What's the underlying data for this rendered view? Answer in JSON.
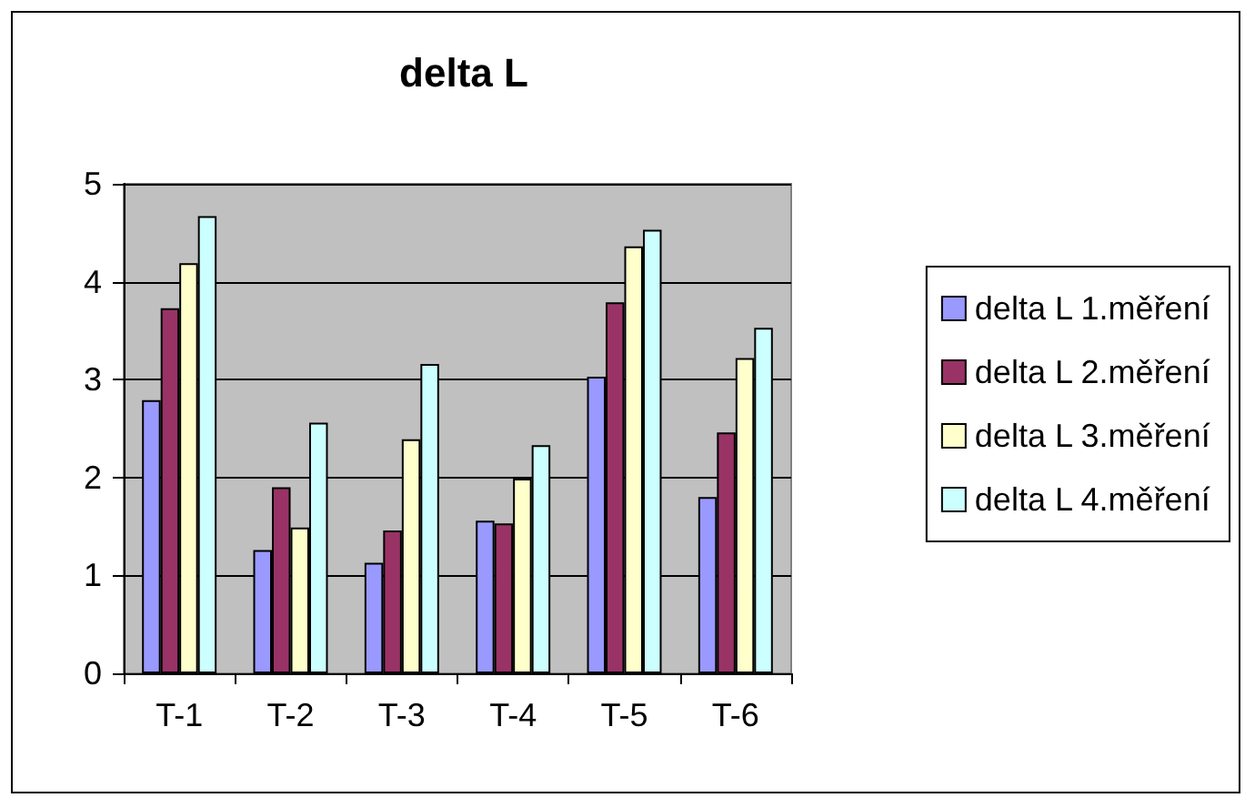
{
  "chart_data": {
    "type": "bar",
    "title": "delta L",
    "categories": [
      "T-1",
      "T-2",
      "T-3",
      "T-4",
      "T-5",
      "T-6"
    ],
    "series": [
      {
        "name": "delta L 1.měření",
        "color": "#9999ff",
        "values": [
          2.79,
          1.26,
          1.13,
          1.56,
          3.03,
          1.8
        ]
      },
      {
        "name": "delta L 2.měření",
        "color": "#993366",
        "values": [
          3.73,
          1.9,
          1.46,
          1.53,
          3.79,
          2.46
        ]
      },
      {
        "name": "delta L 3.měření",
        "color": "#ffffcc",
        "values": [
          4.19,
          1.49,
          2.39,
          1.99,
          4.36,
          3.22
        ]
      },
      {
        "name": "delta L 4.měření",
        "color": "#ccffff",
        "values": [
          4.67,
          2.56,
          3.16,
          2.33,
          4.53,
          3.53
        ]
      }
    ],
    "ylim": [
      0,
      5
    ],
    "yticks": [
      0,
      1,
      2,
      3,
      4,
      5
    ],
    "grid": "y",
    "legend": "right"
  }
}
